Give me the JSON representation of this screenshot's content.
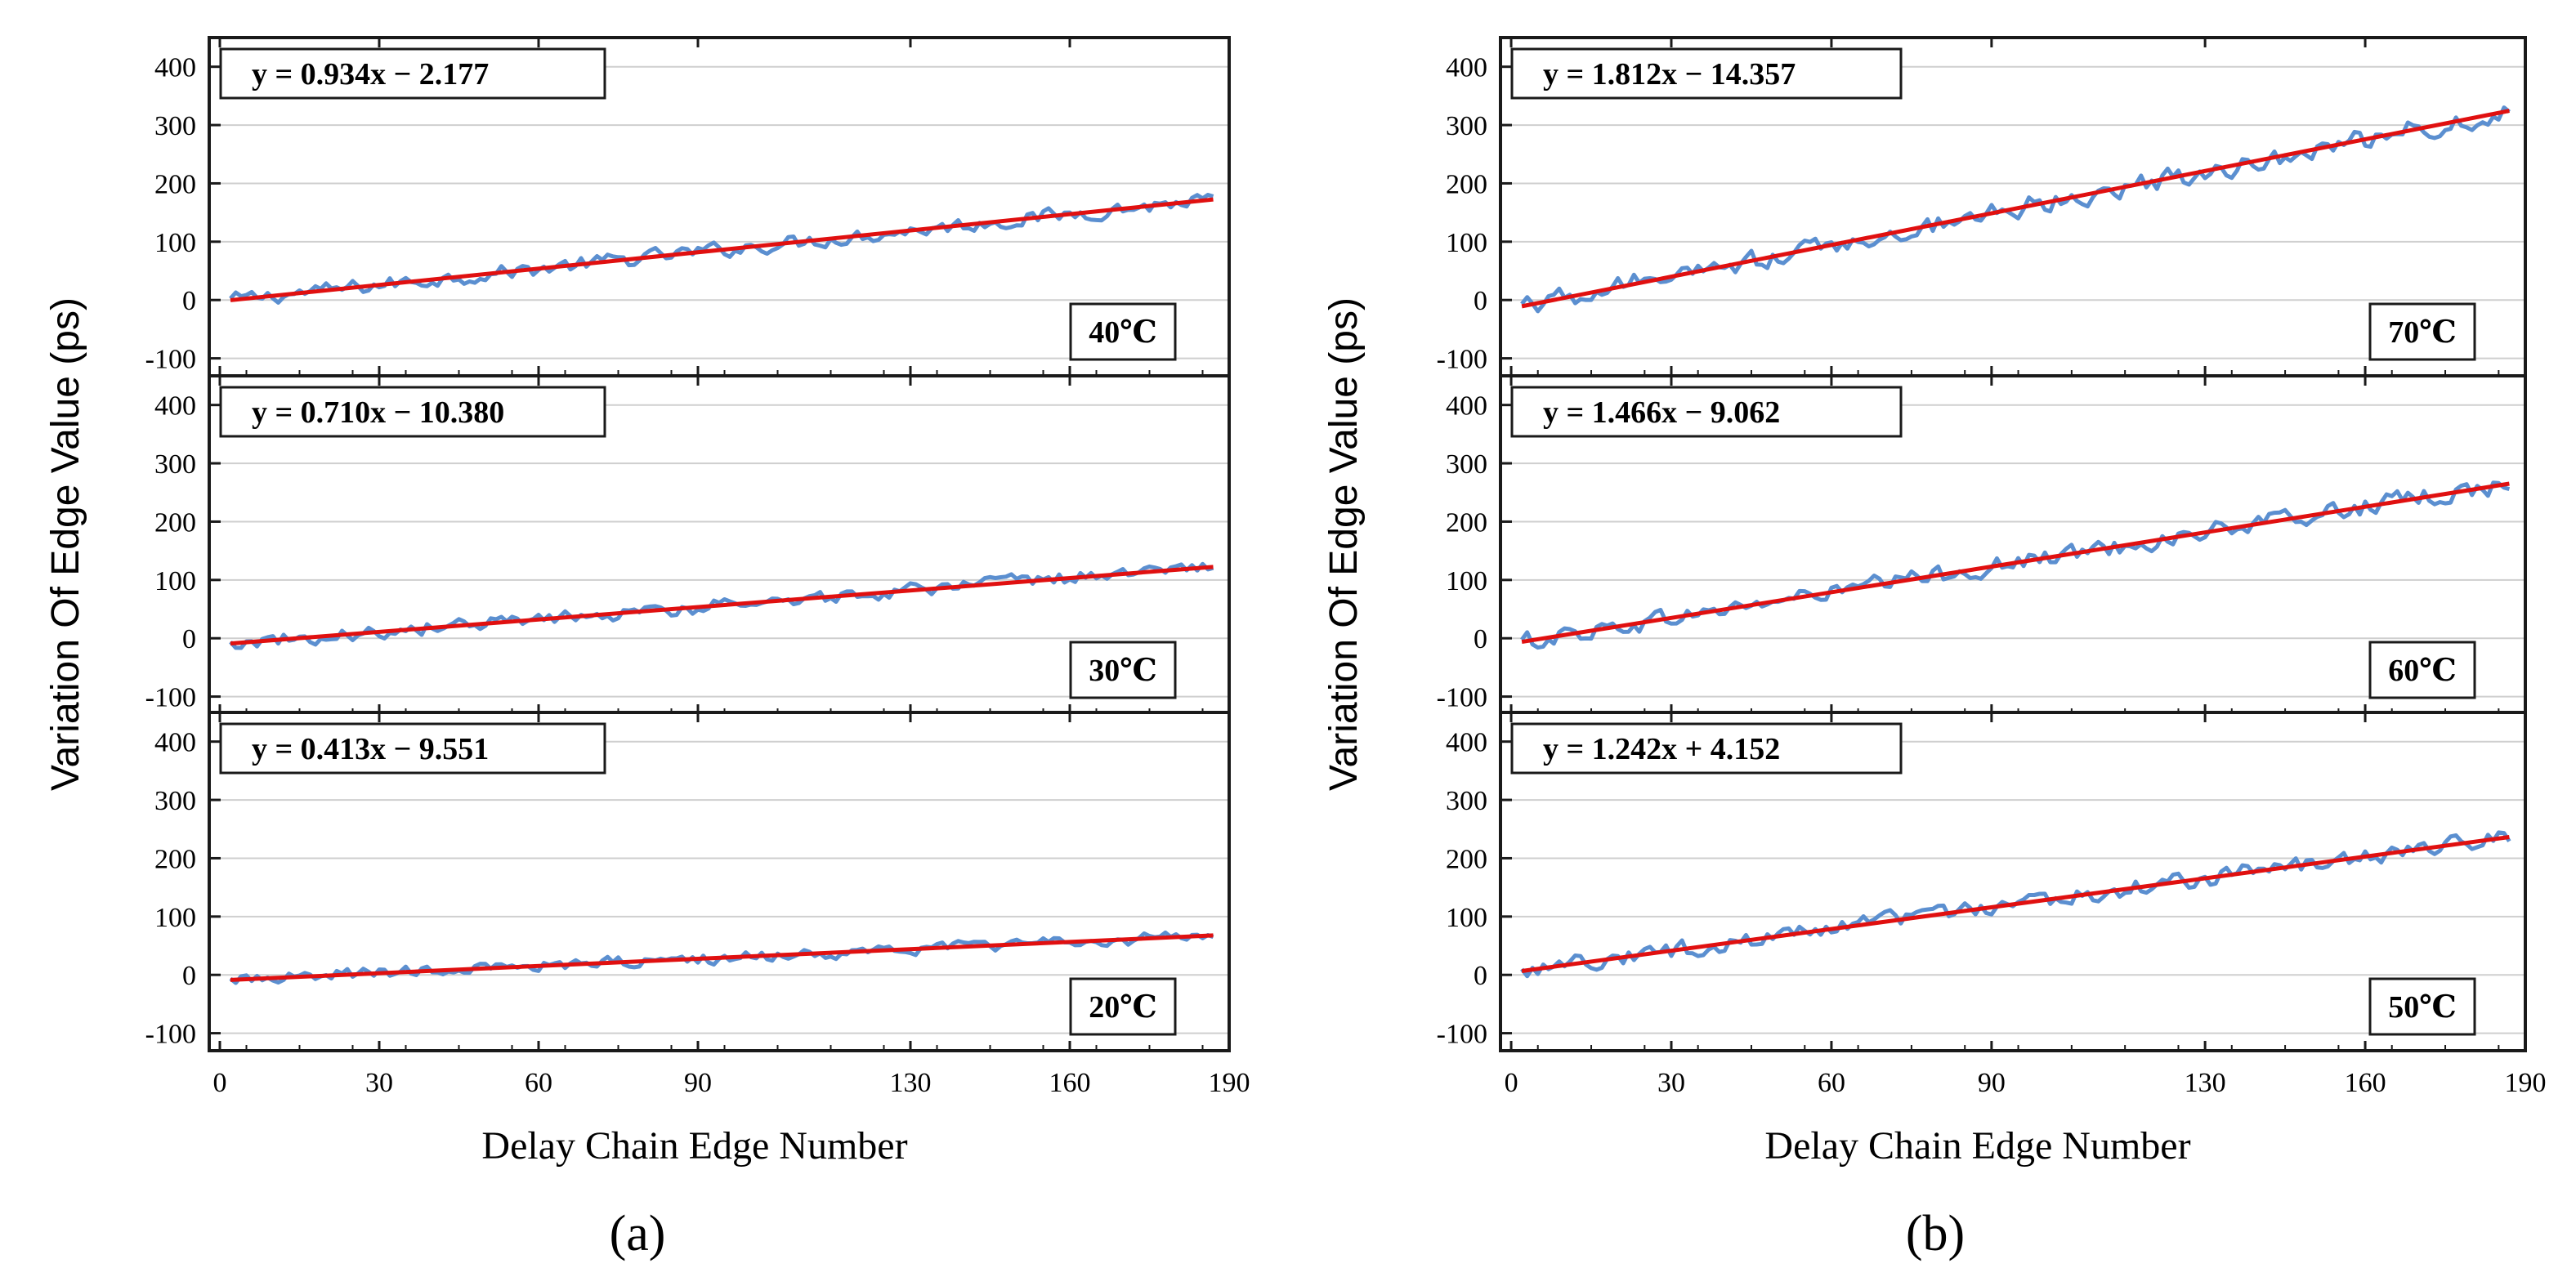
{
  "chart_data": [
    {
      "panel": "(a)",
      "type": "line",
      "xlabel": "Delay Chain Edge Number",
      "ylabel": "Variation Of Edge Value (ps)",
      "xticks": [
        0,
        30,
        60,
        90,
        130,
        160,
        190
      ],
      "yticks": [
        -100,
        0,
        100,
        200,
        300,
        400
      ],
      "subplots": [
        {
          "temperature": "40℃",
          "equation": "y = 0.934x  −  2.177",
          "slope": 0.934,
          "intercept": -2.177,
          "x_range": [
            2,
            187
          ],
          "ylim": [
            -130,
            450
          ],
          "xlim": [
            -2,
            190
          ]
        },
        {
          "temperature": "30℃",
          "equation": "y = 0.710x  − 10.380",
          "slope": 0.71,
          "intercept": -10.38,
          "x_range": [
            2,
            187
          ],
          "ylim": [
            -130,
            450
          ],
          "xlim": [
            -2,
            190
          ]
        },
        {
          "temperature": "20℃",
          "equation": "y = 0.413x  −  9.551",
          "slope": 0.413,
          "intercept": -9.551,
          "x_range": [
            2,
            187
          ],
          "ylim": [
            -130,
            450
          ],
          "xlim": [
            -2,
            190
          ]
        }
      ]
    },
    {
      "panel": "(b)",
      "type": "line",
      "xlabel": "Delay Chain Edge Number",
      "ylabel": "Variation Of Edge Value (ps)",
      "xticks": [
        0,
        30,
        60,
        90,
        130,
        160,
        190
      ],
      "yticks": [
        -100,
        0,
        100,
        200,
        300,
        400
      ],
      "subplots": [
        {
          "temperature": "70℃",
          "equation": "y = 1.812x  −  14.357",
          "slope": 1.812,
          "intercept": -14.357,
          "x_range": [
            2,
            187
          ],
          "ylim": [
            -130,
            450
          ],
          "xlim": [
            -2,
            190
          ]
        },
        {
          "temperature": "60℃",
          "equation": "y = 1.466x  −  9.062",
          "slope": 1.466,
          "intercept": -9.062,
          "x_range": [
            2,
            187
          ],
          "ylim": [
            -130,
            450
          ],
          "xlim": [
            -2,
            190
          ]
        },
        {
          "temperature": "50℃",
          "equation": "y = 1.242x + 4.152",
          "slope": 1.242,
          "intercept": 4.152,
          "x_range": [
            2,
            187
          ],
          "ylim": [
            -130,
            450
          ],
          "xlim": [
            -2,
            190
          ]
        }
      ]
    }
  ],
  "colors": {
    "data_line": "#5b8fd0",
    "fit_line": "#e01010",
    "grid": "#cfcfcf",
    "frame": "#1a1a1a"
  }
}
